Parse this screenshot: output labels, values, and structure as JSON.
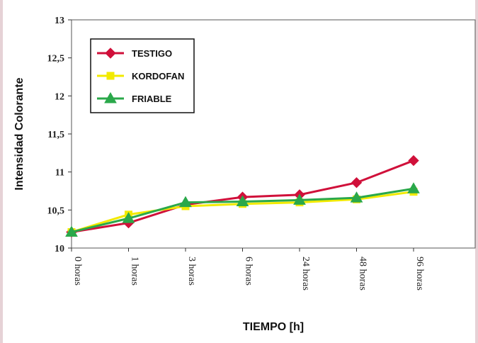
{
  "chart_data": {
    "type": "line",
    "title": "",
    "xlabel": "TIEMPO [h]",
    "ylabel": "Intensidad Colorante",
    "categories": [
      "0 horas",
      "1 horas",
      "3 horas",
      "6 horas",
      "24 horas",
      "48 horas",
      "96 horas"
    ],
    "yticks": [
      "10",
      "10,5",
      "11",
      "11,5",
      "12",
      "12,5",
      "13"
    ],
    "ylim": [
      10,
      13
    ],
    "grid": false,
    "legend_position": "top-left",
    "series": [
      {
        "name": "TESTIGO",
        "color": "#d0103a",
        "marker": "diamond",
        "values": [
          10.21,
          10.33,
          10.57,
          10.67,
          10.7,
          10.86,
          11.15
        ]
      },
      {
        "name": "KORDOFAN",
        "color": "#f2ea00",
        "marker": "square",
        "values": [
          10.21,
          10.44,
          10.55,
          10.58,
          10.6,
          10.64,
          10.74
        ]
      },
      {
        "name": "FRIABLE",
        "color": "#2aa84a",
        "marker": "triangle",
        "values": [
          10.21,
          10.39,
          10.6,
          10.61,
          10.63,
          10.66,
          10.78
        ]
      }
    ]
  }
}
